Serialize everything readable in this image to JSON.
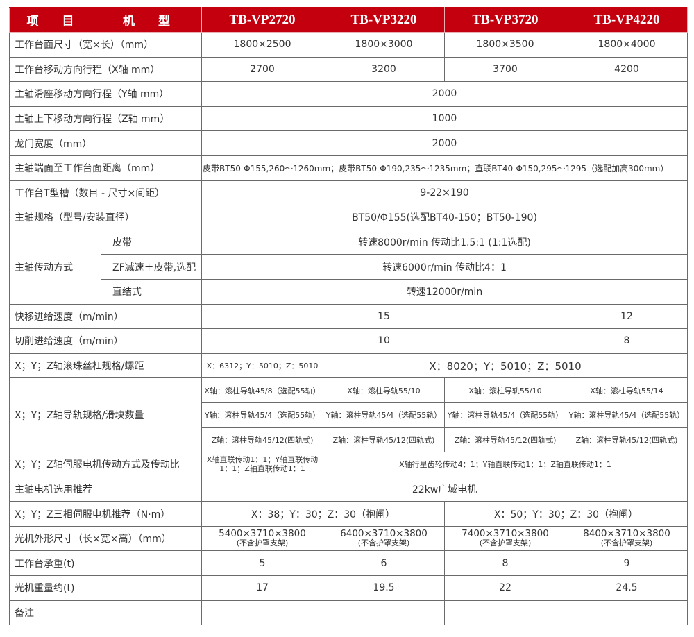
{
  "header": {
    "item": "项 目",
    "model": "机 型",
    "models": [
      "TB-VP2720",
      "TB-VP3220",
      "TB-VP3720",
      "TB-VP4220"
    ]
  },
  "rows": {
    "table_size": {
      "label": "工作台面尺寸（宽×长）（mm）",
      "values": [
        "1800×2500",
        "1800×3000",
        "1800×3500",
        "1800×4000"
      ]
    },
    "x_travel": {
      "label": "工作台移动方向行程（X轴 mm）",
      "values": [
        "2700",
        "3200",
        "3700",
        "4200"
      ]
    },
    "y_travel": {
      "label": "主轴滑座移动方向行程（Y轴 mm）",
      "value": "2000"
    },
    "z_travel": {
      "label": "主轴上下移动方向行程（Z轴 mm）",
      "value": "1000"
    },
    "gantry": {
      "label": "龙门宽度（mm）",
      "value": "2000"
    },
    "spindle_dist": {
      "label": "主轴端面至工作台面距离（mm）",
      "value": "皮带BT50-Φ155,260～1260mm；皮带BT50-Φ190,235～1235mm；直联BT40-Φ150,295～1295（选配加高300mm）"
    },
    "t_slot": {
      "label": "工作台T型槽（数目 - 尺寸×间距）",
      "value": "9-22×190"
    },
    "spindle_spec": {
      "label": "主轴规格（型号/安装直径）",
      "value": "BT50/Φ155(选配BT40-150；BT50-190)"
    },
    "drive": {
      "label": "主轴传动方式",
      "items": [
        {
          "name": "皮带",
          "value": "转速8000r/min 传动比1.5:1 (1:1选配)"
        },
        {
          "name": "ZF减速＋皮带,选配",
          "value": "转速6000r/min 传动比4：1"
        },
        {
          "name": "直结式",
          "value": "转速12000r/min"
        }
      ]
    },
    "rapid": {
      "label": "快移进给速度（m/min）",
      "values": [
        "15",
        "12"
      ]
    },
    "cutting": {
      "label": "切削进给速度（m/min）",
      "values": [
        "10",
        "8"
      ]
    },
    "ballscrew": {
      "label": "X；Y；Z轴滚珠丝杠规格/螺距",
      "values": [
        "X：6312；Y：5010；Z：5010",
        "X：8020；Y：5010；Z：5010"
      ]
    },
    "guide": {
      "label": "X；Y；Z轴导轨规格/滑块数量",
      "x": [
        "X轴：滚柱导轨45/8（选配55轨）",
        "X轴：滚柱导轨55/10",
        "X轴：滚柱导轨55/10",
        "X轴：滚柱导轨55/14"
      ],
      "y": [
        "Y轴：滚柱导轨45/4（选配55轨）",
        "Y轴：滚柱导轨45/4（选配55轨）",
        "Y轴：滚柱导轨45/4（选配55轨）",
        "Y轴：滚柱导轨45/4（选配55轨）"
      ],
      "z": [
        "Z轴：滚柱导轨45/12(四轨式)",
        "Z轴：滚柱导轨45/12(四轨式)",
        "Z轴：滚柱导轨45/12(四轨式)",
        "Z轴：滚柱导轨45/12(四轨式)"
      ]
    },
    "servo_drive": {
      "label": "X；Y；Z轴伺服电机传动方式及传动比",
      "values": [
        "X轴直联传动1：1；Y轴直联传动1：1；Z轴直联传动1：1",
        "X轴行星齿轮传动4：1；Y轴直联传动1：1；Z轴直联传动1：1"
      ]
    },
    "spindle_motor": {
      "label": "主轴电机选用推荐",
      "value": "22kw广域电机"
    },
    "servo_torque": {
      "label": "X；Y；Z三相伺服电机推荐（N·m）",
      "values": [
        "X：38；Y：30；Z：30（抱闸）",
        "X：50；Y：30；Z：30（抱闸）"
      ]
    },
    "dimensions": {
      "label": "光机外形尺寸（长×宽×高）（mm）",
      "values": [
        "5400×3710×3800",
        "6400×3710×3800",
        "7400×3710×3800",
        "8400×3710×3800"
      ],
      "note": "(不含护罩支架)"
    },
    "load": {
      "label": "工作台承重(t)",
      "values": [
        "5",
        "6",
        "8",
        "9"
      ]
    },
    "weight": {
      "label": "光机重量约(t)",
      "values": [
        "17",
        "19.5",
        "22",
        "24.5"
      ]
    },
    "remarks": {
      "label": "备注",
      "values": [
        "",
        "",
        "",
        ""
      ]
    }
  }
}
